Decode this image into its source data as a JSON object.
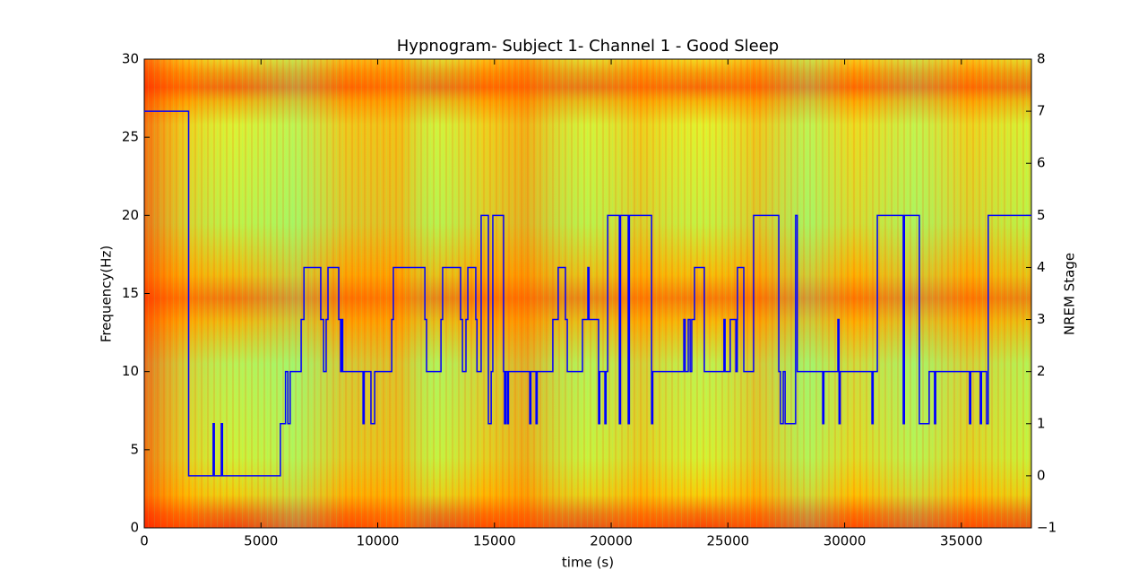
{
  "chart_data": {
    "type": "line",
    "drawstyle": "steps-post",
    "title": "Hypnogram- Subject 1- Channel 1 - Good Sleep",
    "x_label": "time (s)",
    "y_label": "Frequency(Hz)",
    "y2_label": "NREM Stage",
    "axis": "y2",
    "color": "#0000ff",
    "label_color": "#0000ff",
    "x": [
      0,
      1900,
      2950,
      3000,
      3300,
      3350,
      5830,
      6050,
      6150,
      6250,
      6720,
      6840,
      7560,
      7680,
      7790,
      7870,
      8330,
      8410,
      8450,
      8500,
      9370,
      9420,
      9710,
      9870,
      10600,
      10670,
      12020,
      12090,
      12710,
      12780,
      13550,
      13630,
      13780,
      13860,
      14200,
      14250,
      14430,
      14740,
      14860,
      14930,
      15390,
      15430,
      15480,
      15550,
      15600,
      16510,
      16560,
      16780,
      16830,
      17500,
      17730,
      18040,
      18120,
      18770,
      19000,
      19050,
      19460,
      19510,
      19730,
      19780,
      19850,
      20350,
      20400,
      20730,
      20780,
      21730,
      21780,
      23110,
      23170,
      23300,
      23380,
      23450,
      23570,
      23990,
      24830,
      24880,
      25100,
      25340,
      25400,
      25410,
      25680,
      26100,
      27180,
      27250,
      27370,
      27450,
      27900,
      27970,
      29060,
      29110,
      29710,
      29760,
      29810,
      31170,
      31220,
      31400,
      32510,
      32560,
      33200,
      33620,
      33850,
      33900,
      35350,
      35400,
      35810,
      35860,
      36080,
      36150,
      38000
    ],
    "values": [
      7,
      0,
      1,
      0,
      1,
      0,
      1,
      2,
      1,
      2,
      3,
      4,
      3,
      2,
      3,
      4,
      3,
      2,
      3,
      2,
      1,
      2,
      1,
      2,
      3,
      4,
      3,
      2,
      3,
      4,
      3,
      2,
      3,
      4,
      3,
      2,
      5,
      1,
      2,
      5,
      2,
      1,
      2,
      1,
      2,
      1,
      2,
      1,
      2,
      3,
      4,
      3,
      2,
      3,
      4,
      3,
      1,
      2,
      1,
      2,
      5,
      1,
      5,
      1,
      5,
      1,
      2,
      3,
      2,
      3,
      2,
      3,
      4,
      2,
      3,
      2,
      3,
      2,
      3,
      4,
      2,
      5,
      2,
      1,
      2,
      1,
      5,
      2,
      1,
      2,
      3,
      1,
      2,
      1,
      2,
      5,
      1,
      5,
      1,
      2,
      1,
      2,
      1,
      2,
      1,
      2,
      1,
      5,
      5
    ],
    "xlim": [
      0,
      38000
    ],
    "xticks": [
      0,
      5000,
      10000,
      15000,
      20000,
      25000,
      30000,
      35000
    ],
    "ylim": [
      0,
      30
    ],
    "yticks": [
      0,
      5,
      10,
      15,
      20,
      25,
      30
    ],
    "y2lim": [
      -1,
      8
    ],
    "y2ticks": [
      {
        "value": -1,
        "label": "−1"
      },
      0,
      1,
      2,
      3,
      4,
      5,
      6,
      7,
      8
    ]
  }
}
